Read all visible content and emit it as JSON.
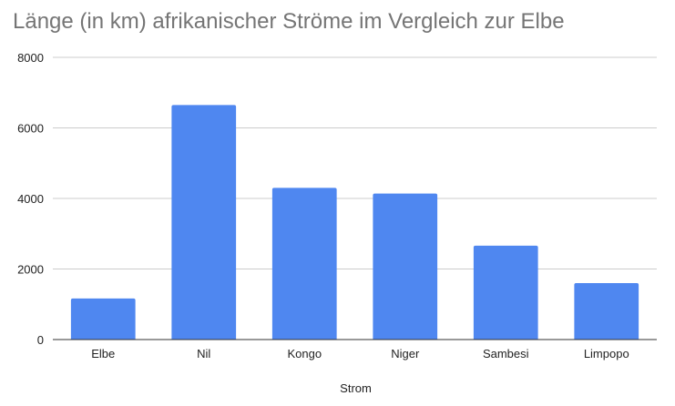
{
  "chart_data": {
    "type": "bar",
    "title": "Länge (in km) afrikanischer Ströme im Vergleich zur Elbe",
    "xlabel": "Strom",
    "ylabel": "",
    "categories": [
      "Elbe",
      "Nil",
      "Kongo",
      "Niger",
      "Sambesi",
      "Limpopo"
    ],
    "values": [
      1165,
      6650,
      4300,
      4140,
      2660,
      1600
    ],
    "ylim": [
      0,
      8000
    ],
    "yticks": [
      "0",
      "2000",
      "4000",
      "6000",
      "8000"
    ],
    "grid": true,
    "legend": "none",
    "bar_color": "#4f87f0",
    "grid_color": "#cccccc",
    "axis_color": "#333333"
  }
}
